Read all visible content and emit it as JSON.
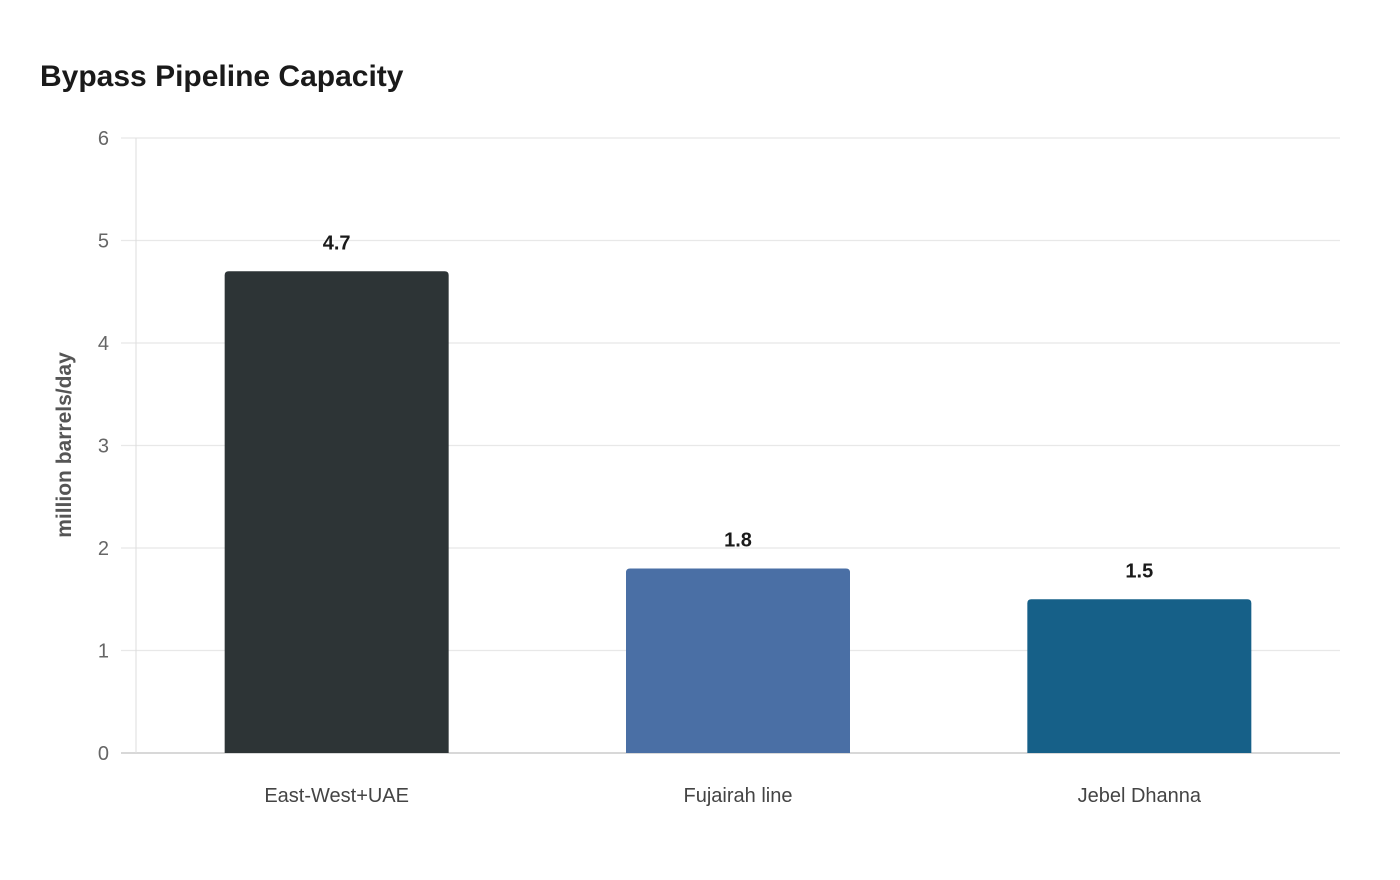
{
  "chart_data": {
    "type": "bar",
    "title": "Bypass Pipeline Capacity",
    "xlabel": "",
    "ylabel": "million barrels/day",
    "categories": [
      "East-West+UAE",
      "Fujairah line",
      "Jebel Dhanna"
    ],
    "values": [
      4.7,
      1.8,
      1.5
    ],
    "data_labels": [
      "4.7",
      "1.8",
      "1.5"
    ],
    "colors": [
      "#2d3436",
      "#4a6fa5",
      "#166088"
    ],
    "ylim": [
      0,
      6
    ],
    "yticks": [
      0,
      1,
      2,
      3,
      4,
      5,
      6
    ],
    "grid": true,
    "legend": "none"
  }
}
